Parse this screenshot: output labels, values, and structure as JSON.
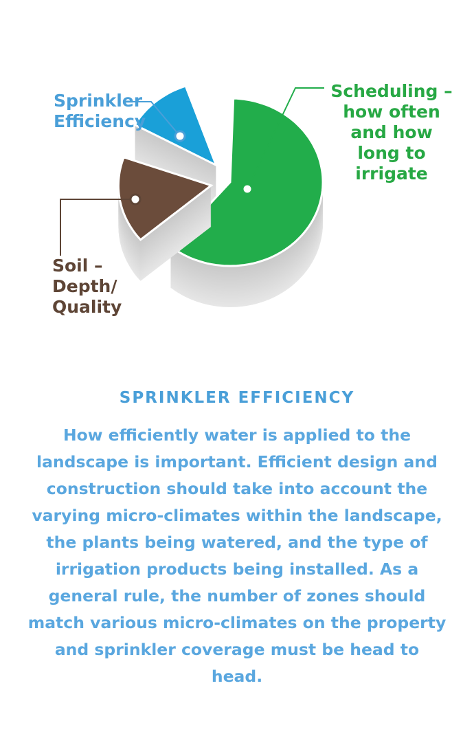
{
  "chart_data": {
    "type": "pie",
    "style": "3d-exploded",
    "slices": [
      {
        "label": "Scheduling – how often and how long to irrigate",
        "value": 61,
        "color": "#22ad4b"
      },
      {
        "label": "Soil – Depth/ Quality",
        "value": 17,
        "color": "#6b4c3b"
      },
      {
        "label": "Sprinkler Efficiency",
        "value": 12,
        "color": "#1aa0d8"
      }
    ],
    "labels": {
      "sprinkler": [
        "Sprinkler",
        "Efficiency"
      ],
      "scheduling": [
        "Scheduling –",
        "how often",
        "and how",
        "long to",
        "irrigate"
      ],
      "soil": [
        "Soil –",
        "Depth/",
        "Quality"
      ]
    }
  },
  "section": {
    "heading": "SPRINKLER EFFICIENCY",
    "body": "How efficiently water is applied to the landscape is important. Efficient design and construction should take into account the varying micro-climates within the landscape, the plants being watered, and the type of irrigation products being installed. As a general rule, the number of zones should match various micro-climates on the property and sprinkler coverage must be head to head."
  }
}
